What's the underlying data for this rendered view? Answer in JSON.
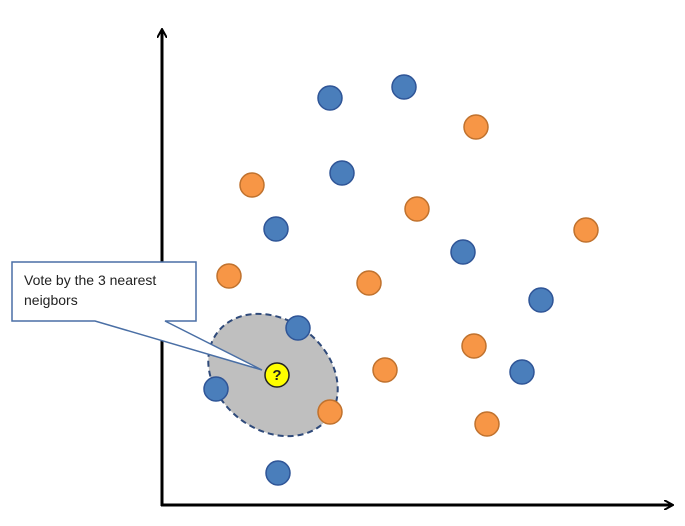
{
  "callout": {
    "lines": [
      "Vote by the 3 nearest",
      "neigbors"
    ]
  },
  "query": {
    "label": "?"
  }
}
